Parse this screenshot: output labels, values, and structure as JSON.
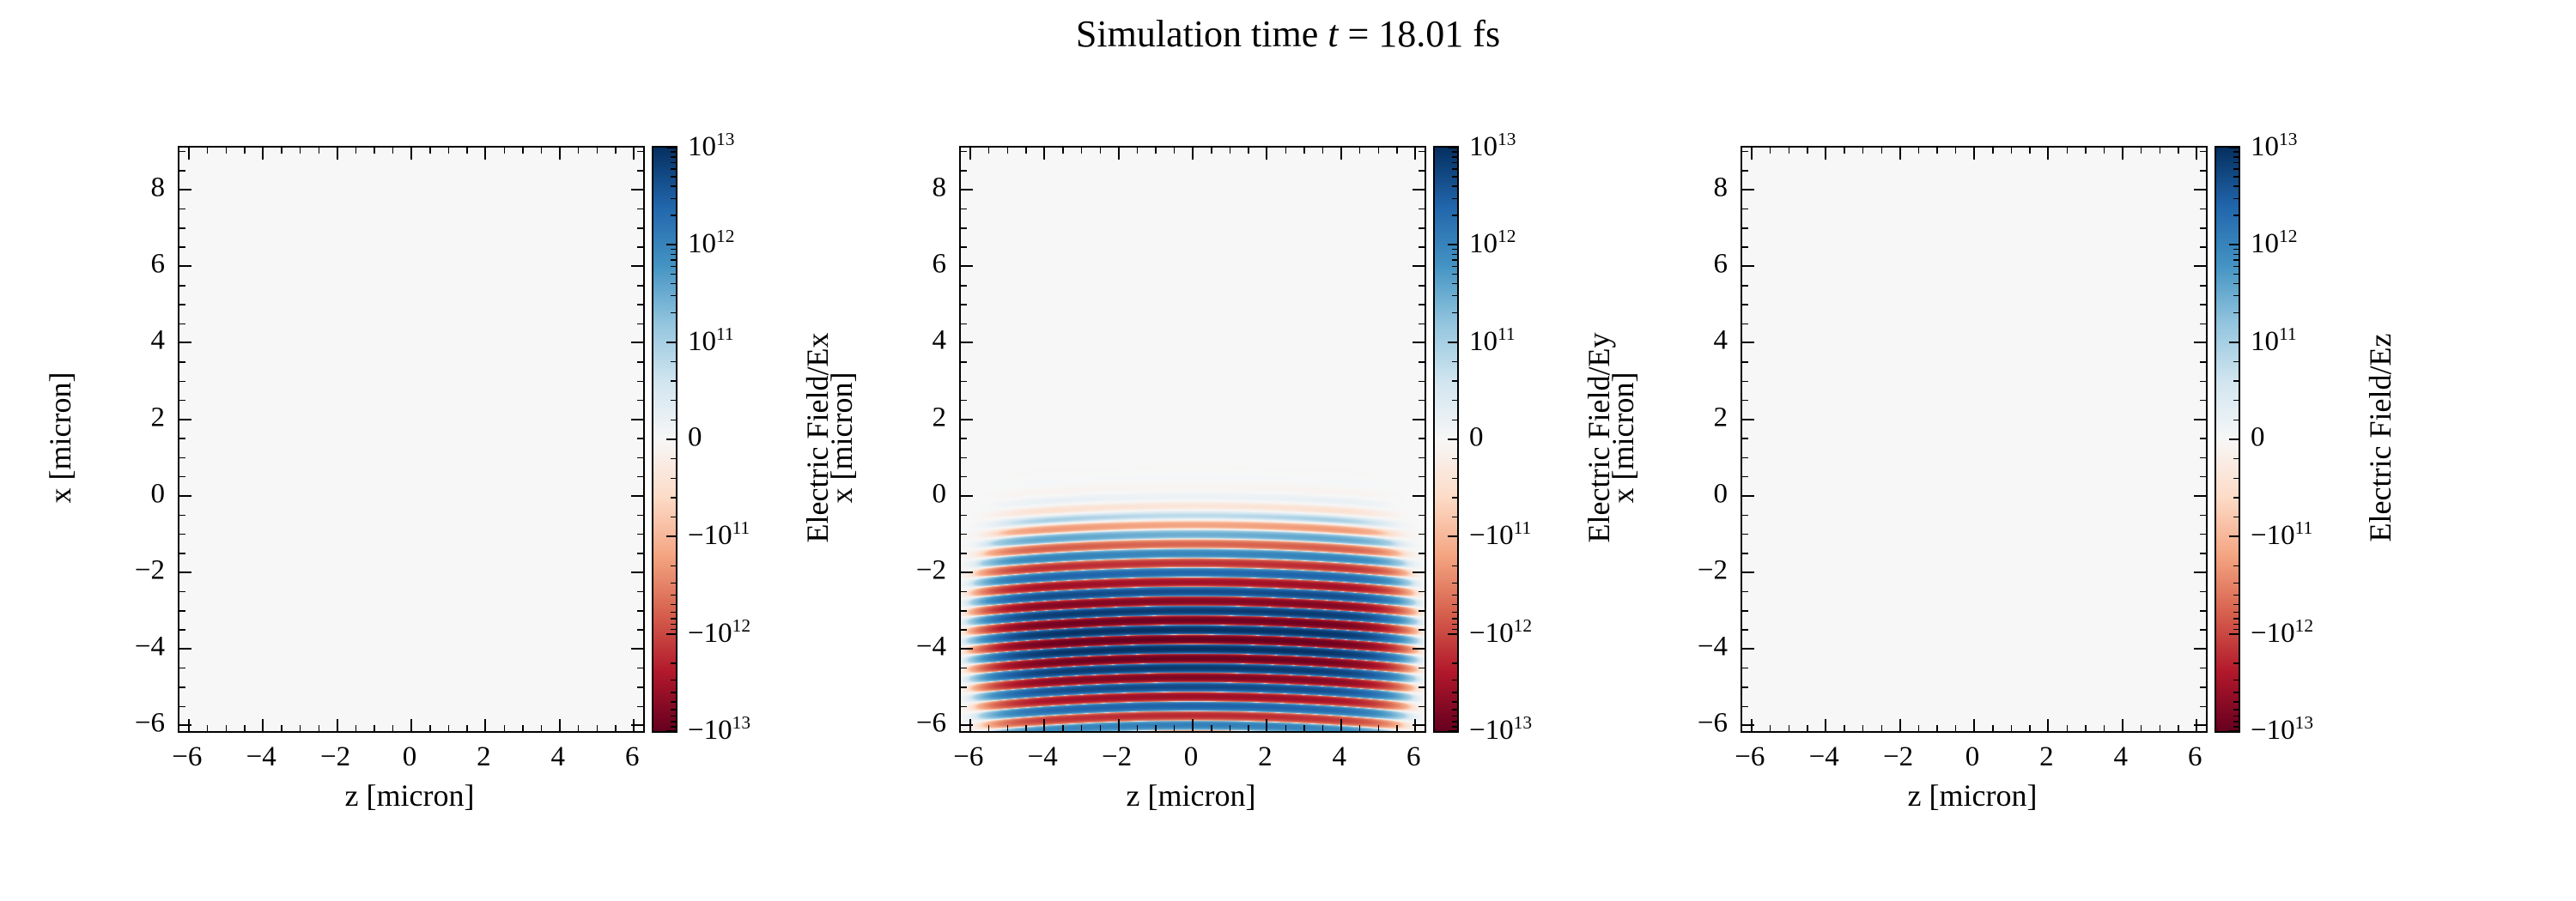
{
  "figure_title": "Simulation time t = 18.01 fs",
  "title": {
    "prefix": "Simulation time ",
    "var": "t",
    "rest": " = 18.01 fs"
  },
  "colormap": {
    "name": "RdBu",
    "stops": [
      "#67001f",
      "#b2182b",
      "#d6604d",
      "#f4a582",
      "#fddbc7",
      "#f7f7f7",
      "#d1e5f0",
      "#92c5de",
      "#4393c3",
      "#2166ac",
      "#053061"
    ],
    "zero_color": "#f7f7f7",
    "positive_end": "#053061",
    "negative_end": "#67001f"
  },
  "chart_data": [
    {
      "type": "heatmap",
      "field": "Ex",
      "xlabel": "z [micron]",
      "ylabel": "x [micron]",
      "colorbar_label": "Electric Field/Ex",
      "xlim": [
        -6.25,
        6.25
      ],
      "ylim": [
        -6.15,
        9.1
      ],
      "xticks": [
        -6,
        -4,
        -2,
        0,
        2,
        4,
        6
      ],
      "xtick_labels": [
        "−6",
        "−4",
        "−2",
        "0",
        "2",
        "4",
        "6"
      ],
      "yticks": [
        -6,
        -4,
        -2,
        0,
        2,
        4,
        6,
        8
      ],
      "ytick_labels": [
        "−6",
        "−4",
        "−2",
        "0",
        "2",
        "4",
        "6",
        "8"
      ],
      "norm": {
        "type": "symlog",
        "linthresh": 100000000000.0,
        "vmin": -10000000000000.0,
        "vmax": 10000000000000.0,
        "log_decades": 2
      },
      "colorbar_ticks": [
        {
          "value": 10000000000000.0,
          "label": "10^13"
        },
        {
          "value": 1000000000000.0,
          "label": "10^12"
        },
        {
          "value": 100000000000.0,
          "label": "10^11"
        },
        {
          "value": 0,
          "label": "0"
        },
        {
          "value": -100000000000.0,
          "label": "−10^11"
        },
        {
          "value": -1000000000000.0,
          "label": "−10^12"
        },
        {
          "value": -10000000000000.0,
          "label": "−10^13"
        }
      ],
      "data_description": "field is zero everywhere (uniform near-white background)"
    },
    {
      "type": "heatmap",
      "field": "Ey",
      "xlabel": "z [micron]",
      "ylabel": "x [micron]",
      "colorbar_label": "Electric Field/Ey",
      "xlim": [
        -6.25,
        6.25
      ],
      "ylim": [
        -6.15,
        9.1
      ],
      "xticks": [
        -6,
        -4,
        -2,
        0,
        2,
        4,
        6
      ],
      "xtick_labels": [
        "−6",
        "−4",
        "−2",
        "0",
        "2",
        "4",
        "6"
      ],
      "yticks": [
        -6,
        -4,
        -2,
        0,
        2,
        4,
        6,
        8
      ],
      "ytick_labels": [
        "−6",
        "−4",
        "−2",
        "0",
        "2",
        "4",
        "6",
        "8"
      ],
      "norm": {
        "type": "symlog",
        "linthresh": 100000000000.0,
        "vmin": -10000000000000.0,
        "vmax": 10000000000000.0,
        "log_decades": 2
      },
      "colorbar_ticks": [
        {
          "value": 10000000000000.0,
          "label": "10^13"
        },
        {
          "value": 1000000000000.0,
          "label": "10^12"
        },
        {
          "value": 100000000000.0,
          "label": "10^11"
        },
        {
          "value": 0,
          "label": "0"
        },
        {
          "value": -100000000000.0,
          "label": "−10^11"
        },
        {
          "value": -1000000000000.0,
          "label": "−10^12"
        },
        {
          "value": -10000000000000.0,
          "label": "−10^13"
        }
      ],
      "wave": {
        "amplitude": 10000000000000.0,
        "wavelength_micron": 0.5,
        "envelope_center_x_micron": -3.8,
        "envelope_sigma_x_micron": 1.5,
        "envelope_halfwidth_z_micron": 5.0,
        "envelope_z_power": 8,
        "wavefront_curvature": 0.008
      },
      "data_description": "laser pulse: horizontal alternating blue/red stripes between x≈−6 and x≈−1, spanning z≈−6..6, peak |Ey|≈1e13 near x≈−3.8, fading toward z edges"
    },
    {
      "type": "heatmap",
      "field": "Ez",
      "xlabel": "z [micron]",
      "ylabel": "x [micron]",
      "colorbar_label": "Electric Field/Ez",
      "xlim": [
        -6.25,
        6.25
      ],
      "ylim": [
        -6.15,
        9.1
      ],
      "xticks": [
        -6,
        -4,
        -2,
        0,
        2,
        4,
        6
      ],
      "xtick_labels": [
        "−6",
        "−4",
        "−2",
        "0",
        "2",
        "4",
        "6"
      ],
      "yticks": [
        -6,
        -4,
        -2,
        0,
        2,
        4,
        6,
        8
      ],
      "ytick_labels": [
        "−6",
        "−4",
        "−2",
        "0",
        "2",
        "4",
        "6",
        "8"
      ],
      "norm": {
        "type": "symlog",
        "linthresh": 100000000000.0,
        "vmin": -10000000000000.0,
        "vmax": 10000000000000.0,
        "log_decades": 2
      },
      "colorbar_ticks": [
        {
          "value": 10000000000000.0,
          "label": "10^13"
        },
        {
          "value": 1000000000000.0,
          "label": "10^12"
        },
        {
          "value": 100000000000.0,
          "label": "10^11"
        },
        {
          "value": 0,
          "label": "0"
        },
        {
          "value": -100000000000.0,
          "label": "−10^11"
        },
        {
          "value": -1000000000000.0,
          "label": "−10^12"
        },
        {
          "value": -10000000000000.0,
          "label": "−10^13"
        }
      ],
      "data_description": "field is zero everywhere (uniform near-white background)"
    }
  ]
}
